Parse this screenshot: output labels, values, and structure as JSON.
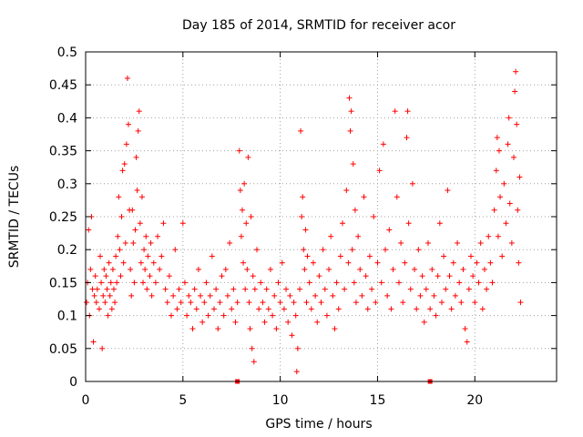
{
  "chart_data": {
    "type": "scatter",
    "title": "Day 185 of 2014, SRMTID for receiver acor",
    "xlabel": "GPS time / hours",
    "ylabel": "SRMTID / TECUs",
    "xlim": [
      0,
      24.2
    ],
    "ylim": [
      0,
      0.5
    ],
    "xticks": [
      0,
      5,
      10,
      15,
      20
    ],
    "xtick_labels": [
      "0",
      "5",
      "10",
      "15",
      "20"
    ],
    "yticks": [
      0,
      0.05,
      0.1,
      0.15,
      0.2,
      0.25,
      0.3,
      0.35,
      0.4,
      0.45,
      0.5
    ],
    "ytick_labels": [
      "0",
      "0.05",
      "0.1",
      "0.15",
      "0.2",
      "0.25",
      "0.3",
      "0.35",
      "0.4",
      "0.45",
      "0.5"
    ],
    "grid": true,
    "marker": "+",
    "color": "#ff0000",
    "series": [
      {
        "name": "SRMTID",
        "points": [
          [
            0.05,
            0.12
          ],
          [
            0.1,
            0.15
          ],
          [
            0.15,
            0.23
          ],
          [
            0.2,
            0.1
          ],
          [
            0.25,
            0.17
          ],
          [
            0.3,
            0.25
          ],
          [
            0.35,
            0.14
          ],
          [
            0.4,
            0.06
          ],
          [
            0.45,
            0.13
          ],
          [
            0.5,
            0.16
          ],
          [
            0.55,
            0.12
          ],
          [
            0.6,
            0.14
          ],
          [
            0.7,
            0.11
          ],
          [
            0.75,
            0.19
          ],
          [
            0.8,
            0.15
          ],
          [
            0.85,
            0.05
          ],
          [
            0.9,
            0.13
          ],
          [
            0.95,
            0.17
          ],
          [
            1.0,
            0.12
          ],
          [
            1.05,
            0.16
          ],
          [
            1.1,
            0.14
          ],
          [
            1.15,
            0.1
          ],
          [
            1.2,
            0.18
          ],
          [
            1.25,
            0.13
          ],
          [
            1.3,
            0.15
          ],
          [
            1.35,
            0.11
          ],
          [
            1.4,
            0.17
          ],
          [
            1.45,
            0.14
          ],
          [
            1.5,
            0.12
          ],
          [
            1.55,
            0.19
          ],
          [
            1.6,
            0.15
          ],
          [
            1.65,
            0.22
          ],
          [
            1.7,
            0.28
          ],
          [
            1.75,
            0.2
          ],
          [
            1.8,
            0.16
          ],
          [
            1.85,
            0.25
          ],
          [
            1.9,
            0.32
          ],
          [
            1.95,
            0.18
          ],
          [
            2.0,
            0.33
          ],
          [
            2.05,
            0.21
          ],
          [
            2.1,
            0.36
          ],
          [
            2.15,
            0.46
          ],
          [
            2.2,
            0.39
          ],
          [
            2.25,
            0.26
          ],
          [
            2.3,
            0.17
          ],
          [
            2.35,
            0.13
          ],
          [
            2.4,
            0.26
          ],
          [
            2.45,
            0.21
          ],
          [
            2.5,
            0.15
          ],
          [
            2.55,
            0.23
          ],
          [
            2.6,
            0.34
          ],
          [
            2.65,
            0.29
          ],
          [
            2.7,
            0.38
          ],
          [
            2.75,
            0.41
          ],
          [
            2.8,
            0.24
          ],
          [
            2.85,
            0.18
          ],
          [
            2.9,
            0.28
          ],
          [
            2.95,
            0.15
          ],
          [
            3.0,
            0.2
          ],
          [
            3.05,
            0.17
          ],
          [
            3.1,
            0.22
          ],
          [
            3.15,
            0.14
          ],
          [
            3.2,
            0.19
          ],
          [
            3.3,
            0.16
          ],
          [
            3.35,
            0.21
          ],
          [
            3.4,
            0.13
          ],
          [
            3.5,
            0.18
          ],
          [
            3.6,
            0.15
          ],
          [
            3.7,
            0.22
          ],
          [
            3.8,
            0.17
          ],
          [
            3.9,
            0.19
          ],
          [
            4.0,
            0.24
          ],
          [
            4.1,
            0.14
          ],
          [
            4.2,
            0.12
          ],
          [
            4.3,
            0.16
          ],
          [
            4.4,
            0.1
          ],
          [
            4.5,
            0.13
          ],
          [
            4.6,
            0.2
          ],
          [
            4.7,
            0.11
          ],
          [
            4.8,
            0.14
          ],
          [
            4.9,
            0.12
          ],
          [
            5.0,
            0.24
          ],
          [
            5.1,
            0.15
          ],
          [
            5.2,
            0.1
          ],
          [
            5.3,
            0.13
          ],
          [
            5.4,
            0.12
          ],
          [
            5.5,
            0.08
          ],
          [
            5.6,
            0.14
          ],
          [
            5.7,
            0.11
          ],
          [
            5.8,
            0.17
          ],
          [
            5.9,
            0.13
          ],
          [
            6.0,
            0.09
          ],
          [
            6.1,
            0.12
          ],
          [
            6.2,
            0.15
          ],
          [
            6.3,
            0.1
          ],
          [
            6.4,
            0.13
          ],
          [
            6.5,
            0.19
          ],
          [
            6.6,
            0.11
          ],
          [
            6.7,
            0.14
          ],
          [
            6.8,
            0.08
          ],
          [
            6.9,
            0.12
          ],
          [
            7.0,
            0.16
          ],
          [
            7.1,
            0.1
          ],
          [
            7.2,
            0.17
          ],
          [
            7.3,
            0.13
          ],
          [
            7.4,
            0.21
          ],
          [
            7.5,
            0.11
          ],
          [
            7.6,
            0.14
          ],
          [
            7.7,
            0.09
          ],
          [
            7.8,
            0.12
          ],
          [
            7.9,
            0.35
          ],
          [
            7.95,
            0.29
          ],
          [
            8.0,
            0.22
          ],
          [
            8.05,
            0.26
          ],
          [
            8.1,
            0.18
          ],
          [
            8.15,
            0.3
          ],
          [
            8.2,
            0.14
          ],
          [
            8.25,
            0.24
          ],
          [
            8.3,
            0.17
          ],
          [
            8.35,
            0.34
          ],
          [
            8.4,
            0.12
          ],
          [
            8.45,
            0.08
          ],
          [
            8.5,
            0.25
          ],
          [
            8.55,
            0.05
          ],
          [
            8.6,
            0.16
          ],
          [
            8.65,
            0.03
          ],
          [
            8.7,
            0.14
          ],
          [
            8.8,
            0.2
          ],
          [
            8.9,
            0.11
          ],
          [
            9.0,
            0.15
          ],
          [
            9.1,
            0.12
          ],
          [
            9.2,
            0.09
          ],
          [
            9.3,
            0.14
          ],
          [
            9.4,
            0.11
          ],
          [
            9.5,
            0.17
          ],
          [
            9.6,
            0.1
          ],
          [
            9.7,
            0.13
          ],
          [
            9.8,
            0.08
          ],
          [
            9.9,
            0.15
          ],
          [
            10.0,
            0.12
          ],
          [
            10.1,
            0.18
          ],
          [
            10.2,
            0.11
          ],
          [
            10.3,
            0.14
          ],
          [
            10.4,
            0.09
          ],
          [
            10.5,
            0.13
          ],
          [
            10.6,
            0.07
          ],
          [
            10.7,
            0.12
          ],
          [
            10.8,
            0.1
          ],
          [
            10.85,
            0.015
          ],
          [
            10.9,
            0.05
          ],
          [
            11.0,
            0.14
          ],
          [
            11.05,
            0.38
          ],
          [
            11.1,
            0.25
          ],
          [
            11.15,
            0.28
          ],
          [
            11.2,
            0.2
          ],
          [
            11.25,
            0.17
          ],
          [
            11.3,
            0.23
          ],
          [
            11.35,
            0.12
          ],
          [
            11.4,
            0.19
          ],
          [
            11.5,
            0.15
          ],
          [
            11.6,
            0.11
          ],
          [
            11.7,
            0.18
          ],
          [
            11.8,
            0.13
          ],
          [
            11.9,
            0.09
          ],
          [
            12.0,
            0.16
          ],
          [
            12.1,
            0.12
          ],
          [
            12.2,
            0.2
          ],
          [
            12.3,
            0.14
          ],
          [
            12.4,
            0.1
          ],
          [
            12.5,
            0.17
          ],
          [
            12.6,
            0.22
          ],
          [
            12.7,
            0.13
          ],
          [
            12.8,
            0.08
          ],
          [
            12.9,
            0.15
          ],
          [
            13.0,
            0.11
          ],
          [
            13.1,
            0.19
          ],
          [
            13.2,
            0.24
          ],
          [
            13.3,
            0.14
          ],
          [
            13.4,
            0.29
          ],
          [
            13.5,
            0.18
          ],
          [
            13.55,
            0.43
          ],
          [
            13.6,
            0.38
          ],
          [
            13.65,
            0.41
          ],
          [
            13.7,
            0.2
          ],
          [
            13.75,
            0.33
          ],
          [
            13.8,
            0.15
          ],
          [
            13.85,
            0.26
          ],
          [
            13.9,
            0.12
          ],
          [
            14.0,
            0.22
          ],
          [
            14.1,
            0.17
          ],
          [
            14.2,
            0.13
          ],
          [
            14.3,
            0.28
          ],
          [
            14.4,
            0.16
          ],
          [
            14.5,
            0.11
          ],
          [
            14.6,
            0.19
          ],
          [
            14.7,
            0.14
          ],
          [
            14.8,
            0.25
          ],
          [
            14.9,
            0.12
          ],
          [
            15.0,
            0.18
          ],
          [
            15.1,
            0.32
          ],
          [
            15.2,
            0.15
          ],
          [
            15.3,
            0.36
          ],
          [
            15.4,
            0.2
          ],
          [
            15.5,
            0.13
          ],
          [
            15.6,
            0.23
          ],
          [
            15.7,
            0.11
          ],
          [
            15.8,
            0.17
          ],
          [
            15.9,
            0.41
          ],
          [
            16.0,
            0.28
          ],
          [
            16.1,
            0.15
          ],
          [
            16.2,
            0.21
          ],
          [
            16.3,
            0.12
          ],
          [
            16.4,
            0.18
          ],
          [
            16.5,
            0.37
          ],
          [
            16.55,
            0.41
          ],
          [
            16.6,
            0.24
          ],
          [
            16.7,
            0.14
          ],
          [
            16.8,
            0.3
          ],
          [
            16.9,
            0.17
          ],
          [
            17.0,
            0.11
          ],
          [
            17.1,
            0.2
          ],
          [
            17.2,
            0.13
          ],
          [
            17.3,
            0.16
          ],
          [
            17.4,
            0.09
          ],
          [
            17.5,
            0.14
          ],
          [
            17.6,
            0.21
          ],
          [
            17.7,
            0.11
          ],
          [
            17.8,
            0.17
          ],
          [
            17.9,
            0.13
          ],
          [
            18.0,
            0.1
          ],
          [
            18.1,
            0.16
          ],
          [
            18.2,
            0.24
          ],
          [
            18.3,
            0.12
          ],
          [
            18.4,
            0.19
          ],
          [
            18.5,
            0.14
          ],
          [
            18.6,
            0.29
          ],
          [
            18.7,
            0.16
          ],
          [
            18.8,
            0.11
          ],
          [
            18.9,
            0.18
          ],
          [
            19.0,
            0.13
          ],
          [
            19.1,
            0.21
          ],
          [
            19.2,
            0.15
          ],
          [
            19.3,
            0.12
          ],
          [
            19.4,
            0.17
          ],
          [
            19.5,
            0.08
          ],
          [
            19.6,
            0.06
          ],
          [
            19.7,
            0.14
          ],
          [
            19.8,
            0.19
          ],
          [
            19.9,
            0.16
          ],
          [
            20.0,
            0.12
          ],
          [
            20.1,
            0.18
          ],
          [
            20.2,
            0.15
          ],
          [
            20.3,
            0.21
          ],
          [
            20.4,
            0.11
          ],
          [
            20.5,
            0.17
          ],
          [
            20.6,
            0.14
          ],
          [
            20.7,
            0.22
          ],
          [
            20.8,
            0.18
          ],
          [
            20.9,
            0.15
          ],
          [
            21.0,
            0.26
          ],
          [
            21.1,
            0.32
          ],
          [
            21.15,
            0.37
          ],
          [
            21.2,
            0.22
          ],
          [
            21.25,
            0.35
          ],
          [
            21.3,
            0.28
          ],
          [
            21.4,
            0.19
          ],
          [
            21.5,
            0.3
          ],
          [
            21.6,
            0.24
          ],
          [
            21.7,
            0.36
          ],
          [
            21.75,
            0.4
          ],
          [
            21.8,
            0.27
          ],
          [
            21.9,
            0.21
          ],
          [
            22.0,
            0.34
          ],
          [
            22.05,
            0.44
          ],
          [
            22.1,
            0.47
          ],
          [
            22.15,
            0.39
          ],
          [
            22.2,
            0.26
          ],
          [
            22.25,
            0.18
          ],
          [
            22.3,
            0.31
          ],
          [
            22.35,
            0.12
          ]
        ]
      }
    ],
    "baseline_markers_x": [
      7.8,
      17.7
    ]
  }
}
